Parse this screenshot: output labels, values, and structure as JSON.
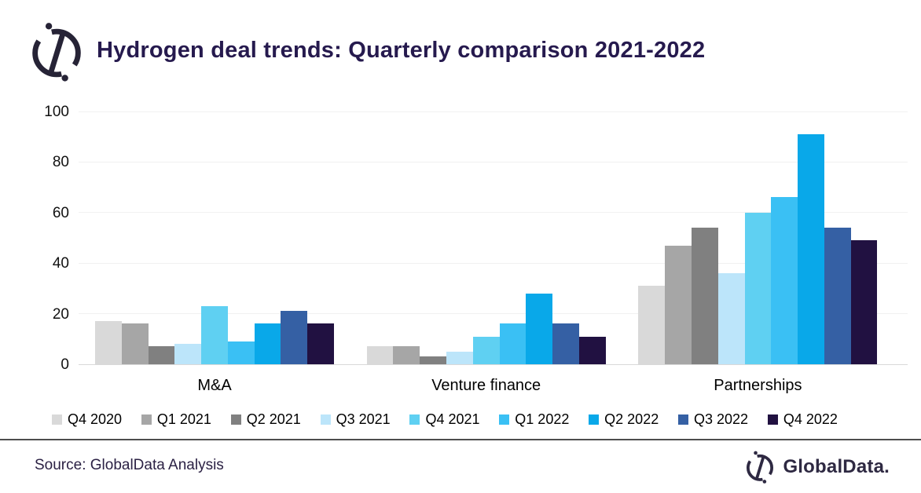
{
  "header": {
    "title": "Hydrogen deal trends: Quarterly comparison 2021-2022"
  },
  "chart_data": {
    "type": "bar",
    "title": "Hydrogen deal trends: Quarterly comparison 2021-2022",
    "categories": [
      "M&A",
      "Venture finance",
      "Partnerships"
    ],
    "series": [
      {
        "name": "Q4 2020",
        "color": "#d9d9d9",
        "values": [
          17,
          7,
          31
        ]
      },
      {
        "name": "Q1 2021",
        "color": "#a6a6a6",
        "values": [
          16,
          7,
          47
        ]
      },
      {
        "name": "Q2 2021",
        "color": "#808080",
        "values": [
          7,
          3,
          54
        ]
      },
      {
        "name": "Q3 2021",
        "color": "#bce5fa",
        "values": [
          8,
          5,
          36
        ]
      },
      {
        "name": "Q4 2021",
        "color": "#5fd0f2",
        "values": [
          23,
          11,
          60
        ]
      },
      {
        "name": "Q1 2022",
        "color": "#3ac0f4",
        "values": [
          9,
          16,
          66
        ]
      },
      {
        "name": "Q2 2022",
        "color": "#09a8e9",
        "values": [
          16,
          28,
          91
        ]
      },
      {
        "name": "Q3 2022",
        "color": "#3560a4",
        "values": [
          21,
          16,
          54
        ]
      },
      {
        "name": "Q4 2022",
        "color": "#211141",
        "values": [
          16,
          11,
          49
        ]
      }
    ],
    "xlabel": "",
    "ylabel": "",
    "ylim": [
      0,
      100
    ],
    "yticks": [
      0,
      20,
      40,
      60,
      80,
      100
    ],
    "grid": true,
    "legend_position": "bottom"
  },
  "footer": {
    "source": "Source: GlobalData Analysis",
    "brand": "GlobalData."
  },
  "colors": {
    "title_text": "#261a4e",
    "axis_text": "#111111",
    "gridline": "#f1f1f1",
    "baseline": "#d9d9d9",
    "divider": "#4d4d4d",
    "brand_navy": "#2e2942"
  }
}
